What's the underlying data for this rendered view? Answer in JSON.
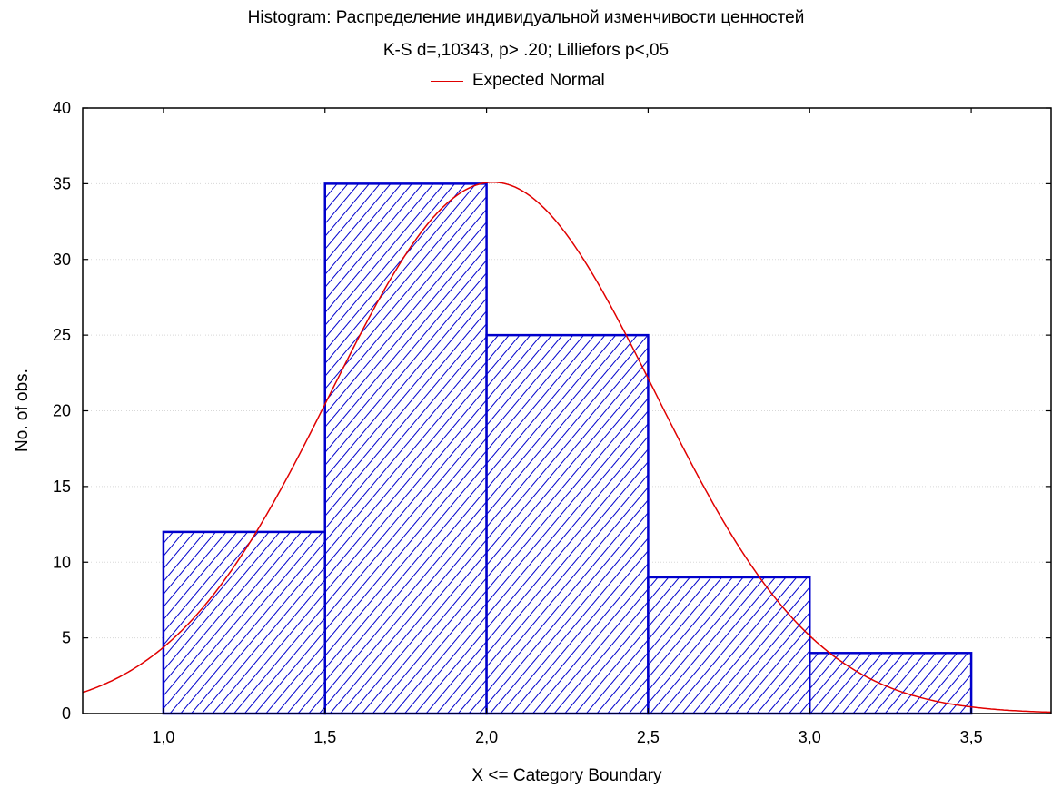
{
  "chart_data": {
    "type": "bar",
    "title": "Histogram: Распределение индивидуальной изменчивости ценностей",
    "subtitle": "K-S d=,10343, p> .20; Lilliefors p<,05",
    "xlabel": "X <= Category Boundary",
    "ylabel": "No. of obs.",
    "xlim": [
      0.75,
      3.75
    ],
    "ylim": [
      0,
      40
    ],
    "xticks": [
      "1,0",
      "1,5",
      "2,0",
      "2,5",
      "3,0",
      "3,5"
    ],
    "xtick_values": [
      1.0,
      1.5,
      2.0,
      2.5,
      3.0,
      3.5
    ],
    "yticks": [
      0,
      5,
      10,
      15,
      20,
      25,
      30,
      35,
      40
    ],
    "bins": [
      [
        1.0,
        1.5
      ],
      [
        1.5,
        2.0
      ],
      [
        2.0,
        2.5
      ],
      [
        2.5,
        3.0
      ],
      [
        3.0,
        3.5
      ]
    ],
    "values": [
      12,
      35,
      25,
      9,
      4
    ],
    "bar_color": "#0000cc",
    "bar_pattern": "diagonal hatch",
    "grid": true,
    "legend": {
      "position": "top-center",
      "entries": [
        "Expected Normal"
      ]
    },
    "series": [
      {
        "name": "Expected Normal",
        "type": "line",
        "color": "#e00000",
        "mean": 2.02,
        "sd": 0.5,
        "peak": 35.1
      }
    ]
  }
}
